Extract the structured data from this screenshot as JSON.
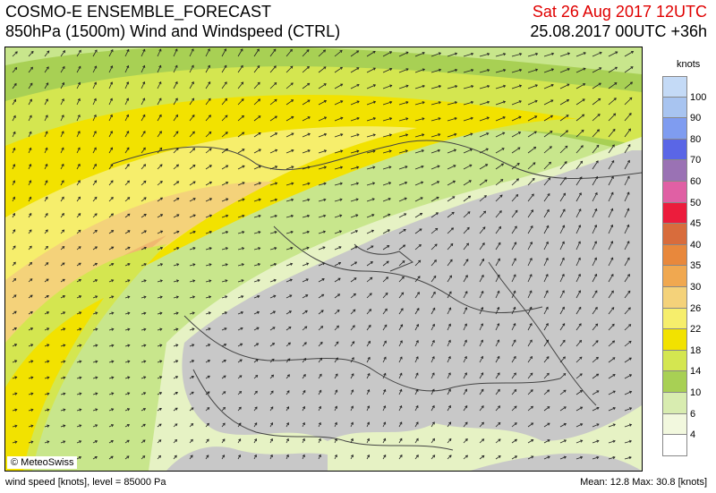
{
  "header": {
    "title_line1": "COSMO-E ENSEMBLE_FORECAST",
    "title_line2": "850hPa (1500m) Wind and Windspeed (CTRL)",
    "valid_time": "Sat 26 Aug 2017 12UTC",
    "run_time": "25.08.2017 00UTC +36h"
  },
  "map": {
    "copyright": "© MeteoSwiss"
  },
  "legend": {
    "unit": "knots",
    "levels": [
      "100",
      "90",
      "80",
      "70",
      "60",
      "50",
      "45",
      "40",
      "35",
      "30",
      "26",
      "22",
      "18",
      "14",
      "10",
      "6",
      "4"
    ],
    "colors": [
      "#c4daf6",
      "#a8c4f0",
      "#7f9cf0",
      "#5a66e6",
      "#9a72b4",
      "#e060a4",
      "#ec1c3c",
      "#d86c3c",
      "#e8883c",
      "#f0a850",
      "#f4d27a",
      "#f6ee6c",
      "#f2e200",
      "#d4e650",
      "#a8d054",
      "#d8ecb0",
      "#f2f8de",
      "#ffffff"
    ]
  },
  "footer": {
    "left": "wind speed [knots], level = 85000 Pa",
    "right": "Mean:   12.8 Max:   30.8 [knots]"
  }
}
